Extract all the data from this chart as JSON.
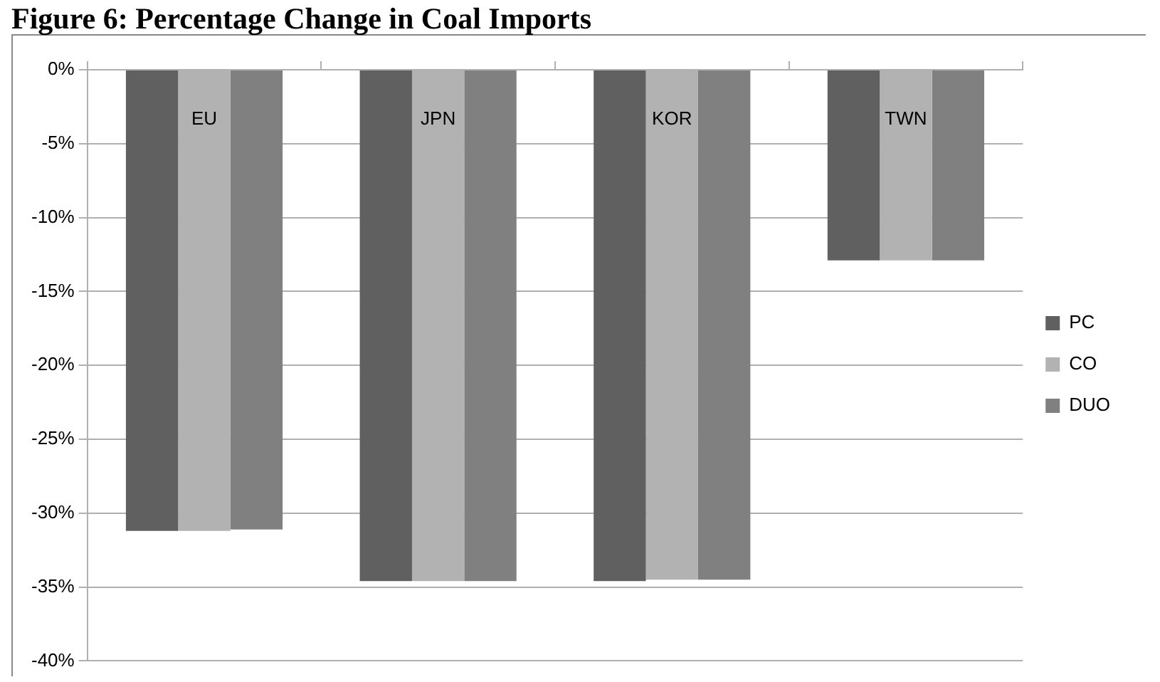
{
  "chart_data": {
    "type": "bar",
    "title": "Figure 6: Percentage Change in Coal Imports",
    "categories": [
      "EU",
      "JPN",
      "KOR",
      "TWN"
    ],
    "series": [
      {
        "name": "PC",
        "color": "#606060",
        "values": [
          -31.2,
          -34.6,
          -34.6,
          -12.9
        ]
      },
      {
        "name": "CO",
        "color": "#b2b2b2",
        "values": [
          -31.2,
          -34.6,
          -34.5,
          -12.9
        ]
      },
      {
        "name": "DUO",
        "color": "#808080",
        "values": [
          -31.1,
          -34.6,
          -34.5,
          -12.9
        ]
      }
    ],
    "ylim": [
      -40,
      0
    ],
    "yticks": [
      {
        "value": 0,
        "label": "0%"
      },
      {
        "value": -5,
        "label": "-5%"
      },
      {
        "value": -10,
        "label": "-10%"
      },
      {
        "value": -15,
        "label": "-15%"
      },
      {
        "value": -20,
        "label": "-20%"
      },
      {
        "value": -25,
        "label": "-25%"
      },
      {
        "value": -30,
        "label": "-30%"
      },
      {
        "value": -35,
        "label": "-35%"
      },
      {
        "value": -40,
        "label": "-40%"
      }
    ],
    "grid": "y",
    "legend": "right"
  }
}
